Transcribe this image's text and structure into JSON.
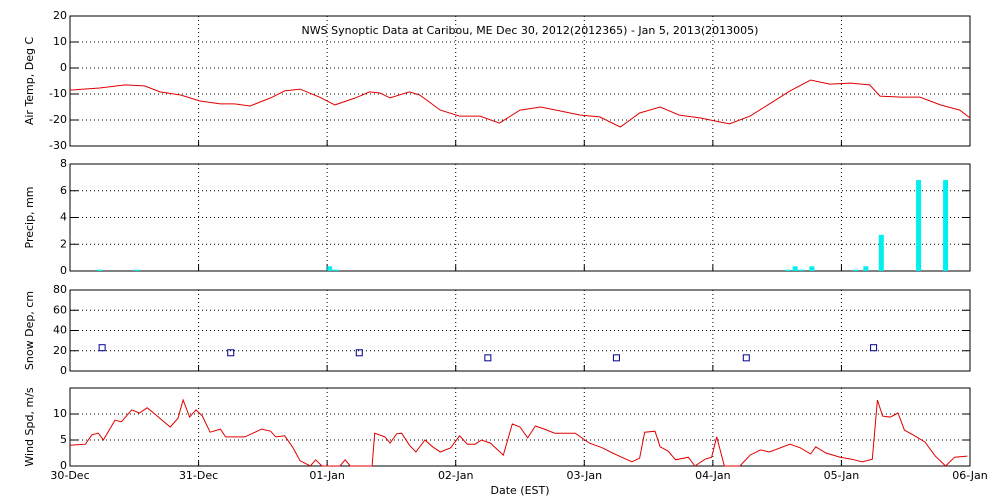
{
  "chart_data": [
    {
      "type": "line",
      "title": "NWS Synoptic Data at Caribou, ME   Dec 30, 2012(2012365) - Jan  5, 2013(2013005)",
      "ylabel": "Air Temp, Deg C",
      "color": "#e00000",
      "xlim": [
        0,
        7
      ],
      "xticks": [
        0,
        1,
        2,
        3,
        4,
        5,
        6,
        7
      ],
      "ylim": [
        -30,
        20
      ],
      "yticks": [
        -30,
        -20,
        -10,
        0,
        10,
        20
      ],
      "grid": true,
      "x": [
        0,
        0.23,
        0.43,
        0.58,
        0.7,
        0.86,
        1.01,
        1.17,
        1.28,
        1.4,
        1.56,
        1.67,
        1.79,
        1.94,
        2.06,
        2.22,
        2.33,
        2.41,
        2.49,
        2.64,
        2.72,
        2.88,
        3.03,
        3.19,
        3.34,
        3.5,
        3.66,
        3.81,
        3.97,
        4.12,
        4.28,
        4.43,
        4.59,
        4.74,
        4.9,
        5.06,
        5.13,
        5.29,
        5.44,
        5.6,
        5.76,
        5.83,
        5.91,
        6.07,
        6.22,
        6.3,
        6.46,
        6.61,
        6.77,
        6.92,
        7.0
      ],
      "values": [
        -8.5,
        -7.7,
        -6.5,
        -6.9,
        -9.2,
        -10.4,
        -12.7,
        -13.8,
        -13.8,
        -14.6,
        -11.5,
        -8.8,
        -8.1,
        -11.2,
        -14.2,
        -11.5,
        -9.2,
        -9.6,
        -11.5,
        -9.2,
        -10.4,
        -16.2,
        -18.5,
        -18.5,
        -21.2,
        -16.2,
        -15,
        -16.5,
        -18.1,
        -18.8,
        -22.7,
        -17.3,
        -15,
        -18.1,
        -19.2,
        -20.8,
        -21.5,
        -18.5,
        -13.8,
        -8.8,
        -4.6,
        -5.4,
        -6.2,
        -5.8,
        -6.5,
        -10.8,
        -11.2,
        -11.2,
        -14.2,
        -16.2,
        -19.2
      ]
    },
    {
      "type": "bar",
      "ylabel": "Precip, mm",
      "color": "#00f0f0",
      "xlim": [
        0,
        7
      ],
      "xticks": [
        0,
        1,
        2,
        3,
        4,
        5,
        6,
        7
      ],
      "ylim": [
        0,
        8
      ],
      "yticks": [
        0,
        2,
        4,
        6,
        8
      ],
      "grid": true,
      "x": [
        0.23,
        0.52,
        2.02,
        2.07,
        5.58,
        5.64,
        5.69,
        5.77,
        6.11,
        6.19,
        6.31,
        6.6,
        6.81
      ],
      "values": [
        0.1,
        0.1,
        0.35,
        0.1,
        0.1,
        0.35,
        0.1,
        0.35,
        0.1,
        0.35,
        2.7,
        6.8,
        6.8
      ]
    },
    {
      "type": "scatter",
      "ylabel": "Snow Dep, cm",
      "color": "#00008b",
      "xlim": [
        0,
        7
      ],
      "xticks": [
        0,
        1,
        2,
        3,
        4,
        5,
        6,
        7
      ],
      "ylim": [
        0,
        80
      ],
      "yticks": [
        0,
        20,
        40,
        60,
        80
      ],
      "grid": true,
      "x": [
        0.25,
        1.25,
        2.25,
        3.25,
        4.25,
        5.26,
        6.25
      ],
      "values": [
        23,
        18,
        18,
        13,
        13,
        13,
        23
      ]
    },
    {
      "type": "line",
      "ylabel": "Wind Spd, m/s",
      "xlabel": "Date (EST)",
      "color": "#e00000",
      "xlim": [
        0,
        7
      ],
      "xticks": [
        {
          "value": 0,
          "label": "30-Dec"
        },
        {
          "value": 1,
          "label": "31-Dec"
        },
        {
          "value": 2,
          "label": "01-Jan"
        },
        {
          "value": 3,
          "label": "02-Jan"
        },
        {
          "value": 4,
          "label": "03-Jan"
        },
        {
          "value": 5,
          "label": "04-Jan"
        },
        {
          "value": 6,
          "label": "05-Jan"
        },
        {
          "value": 7,
          "label": "06-Jan"
        }
      ],
      "ylim": [
        0,
        15
      ],
      "yticks": [
        0,
        5,
        10
      ],
      "grid": true,
      "x": [
        0,
        0.12,
        0.17,
        0.22,
        0.26,
        0.35,
        0.4,
        0.48,
        0.54,
        0.6,
        0.66,
        0.72,
        0.78,
        0.84,
        0.88,
        0.93,
        0.98,
        1.03,
        1.09,
        1.17,
        1.21,
        1.36,
        1.49,
        1.56,
        1.6,
        1.67,
        1.73,
        1.79,
        1.87,
        1.91,
        1.96,
        2.1,
        2.14,
        2.18,
        2.35,
        2.37,
        2.45,
        2.49,
        2.54,
        2.58,
        2.64,
        2.69,
        2.76,
        2.82,
        2.88,
        2.96,
        3.03,
        3.09,
        3.15,
        3.2,
        3.27,
        3.37,
        3.44,
        3.5,
        3.56,
        3.62,
        3.69,
        3.77,
        3.93,
        4.04,
        4.14,
        4.22,
        4.29,
        4.37,
        4.43,
        4.47,
        4.55,
        4.59,
        4.65,
        4.71,
        4.81,
        4.86,
        4.94,
        4.99,
        5.03,
        5.09,
        5.21,
        5.29,
        5.37,
        5.44,
        5.6,
        5.68,
        5.76,
        5.8,
        5.88,
        5.99,
        6.08,
        6.16,
        6.24,
        6.28,
        6.32,
        6.38,
        6.44,
        6.49,
        6.57,
        6.65,
        6.73,
        6.81,
        6.88,
        6.98
      ],
      "values": [
        4.0,
        4.2,
        6.0,
        6.3,
        5.0,
        8.8,
        8.5,
        10.8,
        10.2,
        11.2,
        10.0,
        8.7,
        7.5,
        9.2,
        12.7,
        9.4,
        10.8,
        9.6,
        6.5,
        7.1,
        5.6,
        5.6,
        7.1,
        6.7,
        5.6,
        5.8,
        3.7,
        1.0,
        0,
        1.2,
        0,
        0,
        1.2,
        0,
        0,
        6.3,
        5.6,
        4.4,
        6.2,
        6.3,
        4.0,
        2.7,
        5.0,
        3.7,
        2.7,
        3.5,
        5.8,
        4.2,
        4.2,
        5.0,
        4.4,
        2.1,
        8.1,
        7.5,
        5.4,
        7.7,
        7.1,
        6.3,
        6.3,
        4.4,
        3.5,
        2.5,
        1.7,
        0.8,
        1.5,
        6.5,
        6.7,
        3.7,
        2.9,
        1.2,
        1.7,
        0,
        1.3,
        1.7,
        5.6,
        0,
        0,
        2.1,
        3.1,
        2.7,
        4.2,
        3.5,
        2.3,
        3.7,
        2.5,
        1.7,
        1.3,
        0.8,
        1.3,
        12.7,
        9.6,
        9.4,
        10.2,
        6.9,
        5.8,
        4.6,
        1.9,
        0,
        1.7,
        1.9
      ]
    }
  ]
}
